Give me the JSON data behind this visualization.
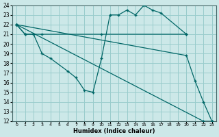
{
  "xlabel": "Humidex (Indice chaleur)",
  "bg_color": "#cce8e8",
  "grid_color": "#99cccc",
  "line_color": "#006666",
  "xlim": [
    -0.5,
    23.5
  ],
  "ylim": [
    12,
    24
  ],
  "xticks": [
    0,
    1,
    2,
    3,
    4,
    5,
    6,
    7,
    8,
    9,
    10,
    11,
    12,
    13,
    14,
    15,
    16,
    17,
    18,
    19,
    20,
    21,
    22,
    23
  ],
  "yticks": [
    12,
    13,
    14,
    15,
    16,
    17,
    18,
    19,
    20,
    21,
    22,
    23,
    24
  ],
  "line1_x": [
    0,
    1,
    2,
    3,
    10,
    20
  ],
  "line1_y": [
    22,
    21,
    21,
    21,
    21,
    21
  ],
  "line2_x": [
    0,
    1,
    2,
    3,
    4,
    6,
    7,
    8,
    9,
    10,
    11,
    12,
    13,
    14,
    15,
    16,
    17,
    20
  ],
  "line2_y": [
    22,
    21,
    21,
    19,
    18.5,
    17.2,
    16.5,
    15.2,
    15.0,
    18.5,
    23.0,
    23.0,
    23.5,
    23.0,
    24.0,
    23.5,
    23.2,
    21.0
  ],
  "line3_x": [
    0,
    22,
    23
  ],
  "line3_y": [
    22,
    12,
    12
  ],
  "line4_x": [
    0,
    20,
    21,
    22,
    23
  ],
  "line4_y": [
    22,
    18.8,
    16.2,
    14.0,
    12.0
  ]
}
